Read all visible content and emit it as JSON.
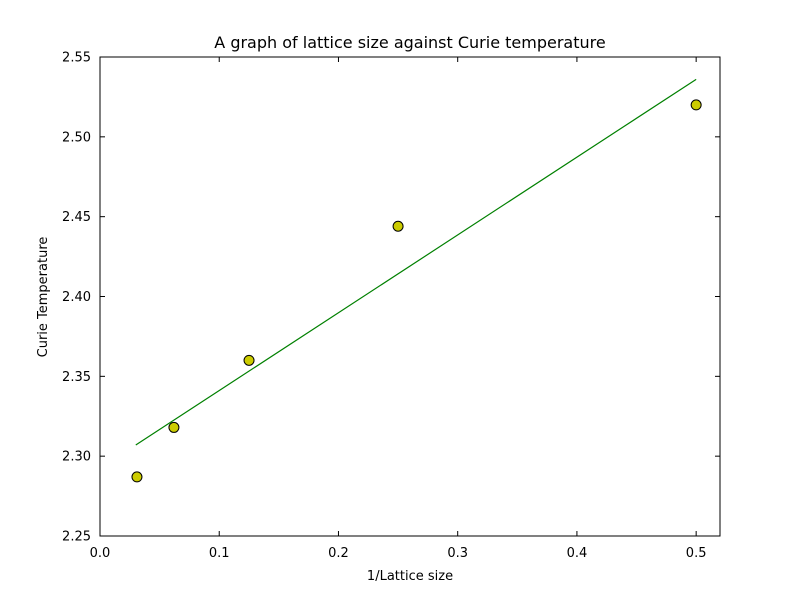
{
  "chart_data": {
    "type": "scatter",
    "title": "A graph of lattice size against Curie temperature",
    "xlabel": "1/Lattice size",
    "ylabel": "Curie Temperature",
    "xlim": [
      0.0,
      0.52
    ],
    "ylim": [
      2.25,
      2.55
    ],
    "xticks": [
      0.0,
      0.1,
      0.2,
      0.3,
      0.4,
      0.5
    ],
    "xtick_labels": [
      "0.0",
      "0.1",
      "0.2",
      "0.3",
      "0.4",
      "0.5"
    ],
    "yticks": [
      2.25,
      2.3,
      2.35,
      2.4,
      2.45,
      2.5,
      2.55
    ],
    "ytick_labels": [
      "2.25",
      "2.30",
      "2.35",
      "2.40",
      "2.45",
      "2.50",
      "2.55"
    ],
    "grid": false,
    "legend": null,
    "points": [
      {
        "x": 0.031,
        "y": 2.287
      },
      {
        "x": 0.062,
        "y": 2.318
      },
      {
        "x": 0.125,
        "y": 2.36
      },
      {
        "x": 0.25,
        "y": 2.444
      },
      {
        "x": 0.5,
        "y": 2.52
      }
    ],
    "point_style": {
      "marker": "circle",
      "fill": "#cccc00",
      "stroke": "#000000",
      "radius": 5
    },
    "fit_line": {
      "x1": 0.03,
      "y1": 2.307,
      "x2": 0.5,
      "y2": 2.536,
      "color": "#008000"
    }
  },
  "colors": {
    "background": "#ffffff",
    "axis": "#000000",
    "text": "#000000"
  }
}
